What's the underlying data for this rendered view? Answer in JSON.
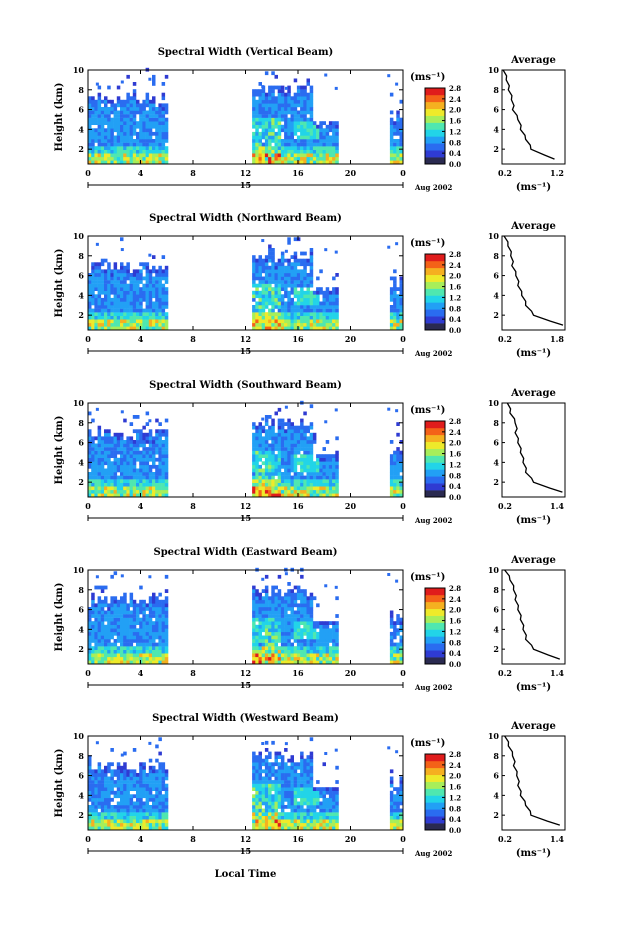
{
  "colors": {
    "scale": [
      "#2a2a50",
      "#2f3bd2",
      "#2a6cf0",
      "#22a0f5",
      "#22d4e8",
      "#4fe7b0",
      "#a7ee5a",
      "#eeea2a",
      "#f5b020",
      "#f46218",
      "#e01c1c"
    ]
  },
  "shared": {
    "x_ticks": [
      "0",
      "4",
      "8",
      "12",
      "16",
      "20",
      "0"
    ],
    "date_tick": "15",
    "date_label": "Aug 2002",
    "y_ticks": [
      "2",
      "4",
      "6",
      "8",
      "10"
    ],
    "ylabel": "Height (km)",
    "unit_label": "(ms⁻¹)",
    "colorbar_ticks": [
      "0.0",
      "0.4",
      "0.8",
      "1.2",
      "1.6",
      "2.0",
      "2.4",
      "2.8"
    ],
    "avg_title": "Average",
    "avg_unit": "(ms⁻¹)",
    "avg_y_ticks": [
      "2",
      "4",
      "6",
      "8",
      "10"
    ],
    "xlabel": "Local Time"
  },
  "panels": [
    {
      "title": "Spectral Width (Vertical Beam)",
      "avg_x_ticks": [
        "0.2",
        "1.2"
      ],
      "date_tick": "15",
      "date_label": "Aug 2002"
    },
    {
      "title": "Spectral Width (Northward Beam)",
      "avg_x_ticks": [
        "0.2",
        "1.8"
      ],
      "date_tick": "15",
      "date_label": "Aug 2002"
    },
    {
      "title": "Spectral Width (Southward Beam)",
      "avg_x_ticks": [
        "0.2",
        "1.4"
      ],
      "date_tick": "15",
      "date_label": "Aug 2002"
    },
    {
      "title": "Spectral Width (Eastward Beam)",
      "avg_x_ticks": [
        "0.2",
        "1.4"
      ],
      "date_tick": "15",
      "date_label": "Aug 2002"
    },
    {
      "title": "Spectral Width (Westward Beam)",
      "avg_x_ticks": [
        "0.2",
        "1.4"
      ],
      "date_tick": "15",
      "date_label": "Aug 2002"
    }
  ],
  "chart_data": [
    {
      "type": "heatmap",
      "title": "Spectral Width (Vertical Beam)",
      "xlabel": "",
      "ylabel": "Height (km)",
      "xlim": [
        0,
        24
      ],
      "ylim": [
        0.5,
        10
      ],
      "colorbar": {
        "label": "(ms⁻¹)",
        "range": [
          0,
          3.0
        ]
      },
      "data_blocks_hours": [
        [
          0,
          6
        ],
        [
          12.5,
          19
        ],
        [
          23,
          24
        ]
      ],
      "average_profile": {
        "title": "Average",
        "xlim": [
          0.2,
          1.4
        ],
        "height_km": [
          1,
          2,
          3,
          4,
          5,
          6,
          7,
          8,
          9,
          10
        ],
        "width_ms": [
          1.2,
          0.75,
          0.65,
          0.55,
          0.5,
          0.4,
          0.38,
          0.32,
          0.28,
          0.22
        ]
      }
    },
    {
      "type": "heatmap",
      "title": "Spectral Width (Northward Beam)",
      "xlabel": "",
      "ylabel": "Height (km)",
      "xlim": [
        0,
        24
      ],
      "ylim": [
        0.5,
        10
      ],
      "colorbar": {
        "label": "(ms⁻¹)",
        "range": [
          0,
          3.0
        ]
      },
      "data_blocks_hours": [
        [
          0,
          6
        ],
        [
          12.5,
          19
        ],
        [
          23,
          24
        ]
      ],
      "average_profile": {
        "title": "Average",
        "xlim": [
          0.2,
          1.8
        ],
        "height_km": [
          1,
          2,
          3,
          4,
          5,
          6,
          7,
          8,
          9,
          10
        ],
        "width_ms": [
          1.75,
          1.0,
          0.8,
          0.7,
          0.6,
          0.55,
          0.45,
          0.42,
          0.35,
          0.25
        ]
      }
    },
    {
      "type": "heatmap",
      "title": "Spectral Width (Southward Beam)",
      "xlabel": "",
      "ylabel": "Height (km)",
      "xlim": [
        0,
        24
      ],
      "ylim": [
        0.5,
        10
      ],
      "colorbar": {
        "label": "(ms⁻¹)",
        "range": [
          0,
          3.0
        ]
      },
      "data_blocks_hours": [
        [
          0,
          6
        ],
        [
          12.5,
          19
        ],
        [
          23,
          24
        ]
      ],
      "average_profile": {
        "title": "Average",
        "xlim": [
          0.2,
          1.4
        ],
        "height_km": [
          1,
          2,
          3,
          4,
          5,
          6,
          7,
          8,
          9,
          10
        ],
        "width_ms": [
          1.35,
          0.8,
          0.65,
          0.6,
          0.55,
          0.5,
          0.45,
          0.45,
          0.35,
          0.3
        ]
      }
    },
    {
      "type": "heatmap",
      "title": "Spectral Width (Eastward Beam)",
      "xlabel": "",
      "ylabel": "Height (km)",
      "xlim": [
        0,
        24
      ],
      "ylim": [
        0.5,
        10
      ],
      "colorbar": {
        "label": "(ms⁻¹)",
        "range": [
          0,
          3.0
        ]
      },
      "data_blocks_hours": [
        [
          0,
          6
        ],
        [
          12.5,
          19
        ],
        [
          23,
          24
        ]
      ],
      "average_profile": {
        "title": "Average",
        "xlim": [
          0.2,
          1.4
        ],
        "height_km": [
          1,
          2,
          3,
          4,
          5,
          6,
          7,
          8,
          9,
          10
        ],
        "width_ms": [
          1.3,
          0.8,
          0.65,
          0.6,
          0.55,
          0.5,
          0.45,
          0.42,
          0.35,
          0.25
        ]
      }
    },
    {
      "type": "heatmap",
      "title": "Spectral Width (Westward Beam)",
      "xlabel": "Local Time",
      "ylabel": "Height (km)",
      "xlim": [
        0,
        24
      ],
      "ylim": [
        0.5,
        10
      ],
      "colorbar": {
        "label": "(ms⁻¹)",
        "range": [
          0,
          3.0
        ]
      },
      "data_blocks_hours": [
        [
          0,
          6
        ],
        [
          12.5,
          19
        ],
        [
          23,
          24
        ]
      ],
      "average_profile": {
        "title": "Average",
        "xlim": [
          0.2,
          1.4
        ],
        "height_km": [
          1,
          2,
          3,
          4,
          5,
          6,
          7,
          8,
          9,
          10
        ],
        "width_ms": [
          1.3,
          0.75,
          0.65,
          0.55,
          0.5,
          0.48,
          0.42,
          0.4,
          0.32,
          0.25
        ]
      }
    }
  ]
}
